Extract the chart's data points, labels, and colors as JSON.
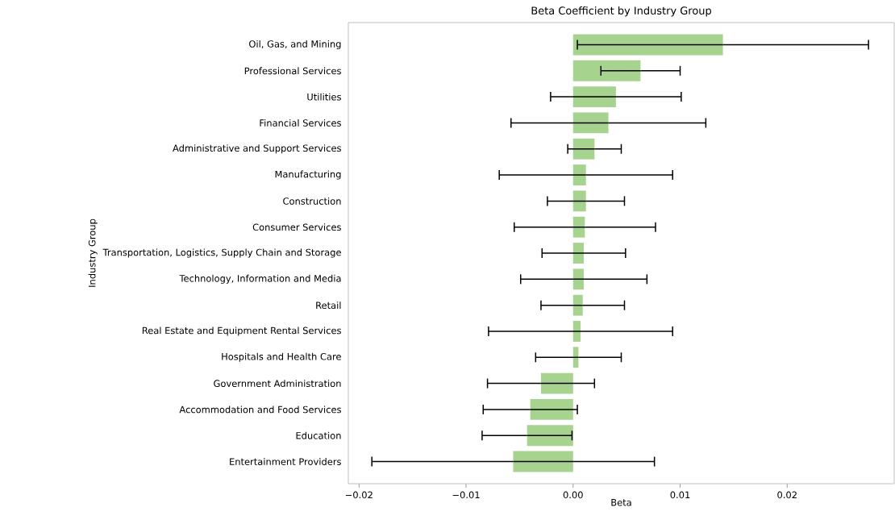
{
  "chart_data": {
    "type": "bar",
    "orientation": "horizontal",
    "title": "Beta Coefficient by Industry Group",
    "xlabel": "Beta",
    "ylabel": "Industry Group",
    "categories": [
      "Oil, Gas, and Mining",
      "Professional Services",
      "Utilities",
      "Financial Services",
      "Administrative and Support Services",
      "Manufacturing",
      "Construction",
      "Consumer Services",
      "Transportation, Logistics, Supply Chain and Storage",
      "Technology, Information and Media",
      "Retail",
      "Real Estate and Equipment Rental Services",
      "Hospitals and Health Care",
      "Government Administration",
      "Accommodation and Food Services",
      "Education",
      "Entertainment Providers"
    ],
    "values": [
      0.014,
      0.0063,
      0.004,
      0.0033,
      0.002,
      0.0012,
      0.0012,
      0.0011,
      0.001,
      0.001,
      0.0009,
      0.0007,
      0.0005,
      -0.003,
      -0.004,
      -0.0043,
      -0.0056
    ],
    "errors": [
      0.0136,
      0.0037,
      0.0061,
      0.0091,
      0.0025,
      0.0081,
      0.0036,
      0.0066,
      0.0039,
      0.0059,
      0.0039,
      0.0086,
      0.004,
      0.005,
      0.0044,
      0.0042,
      0.0132
    ],
    "color": "#a6d38e",
    "xlim": [
      -0.021,
      0.03
    ],
    "xticks": [
      {
        "value": -0.02,
        "label": "−0.02"
      },
      {
        "value": -0.01,
        "label": "−0.01"
      },
      {
        "value": 0,
        "label": "0.00"
      },
      {
        "value": 0.01,
        "label": "0.01"
      },
      {
        "value": 0.02,
        "label": "0.02"
      }
    ]
  }
}
